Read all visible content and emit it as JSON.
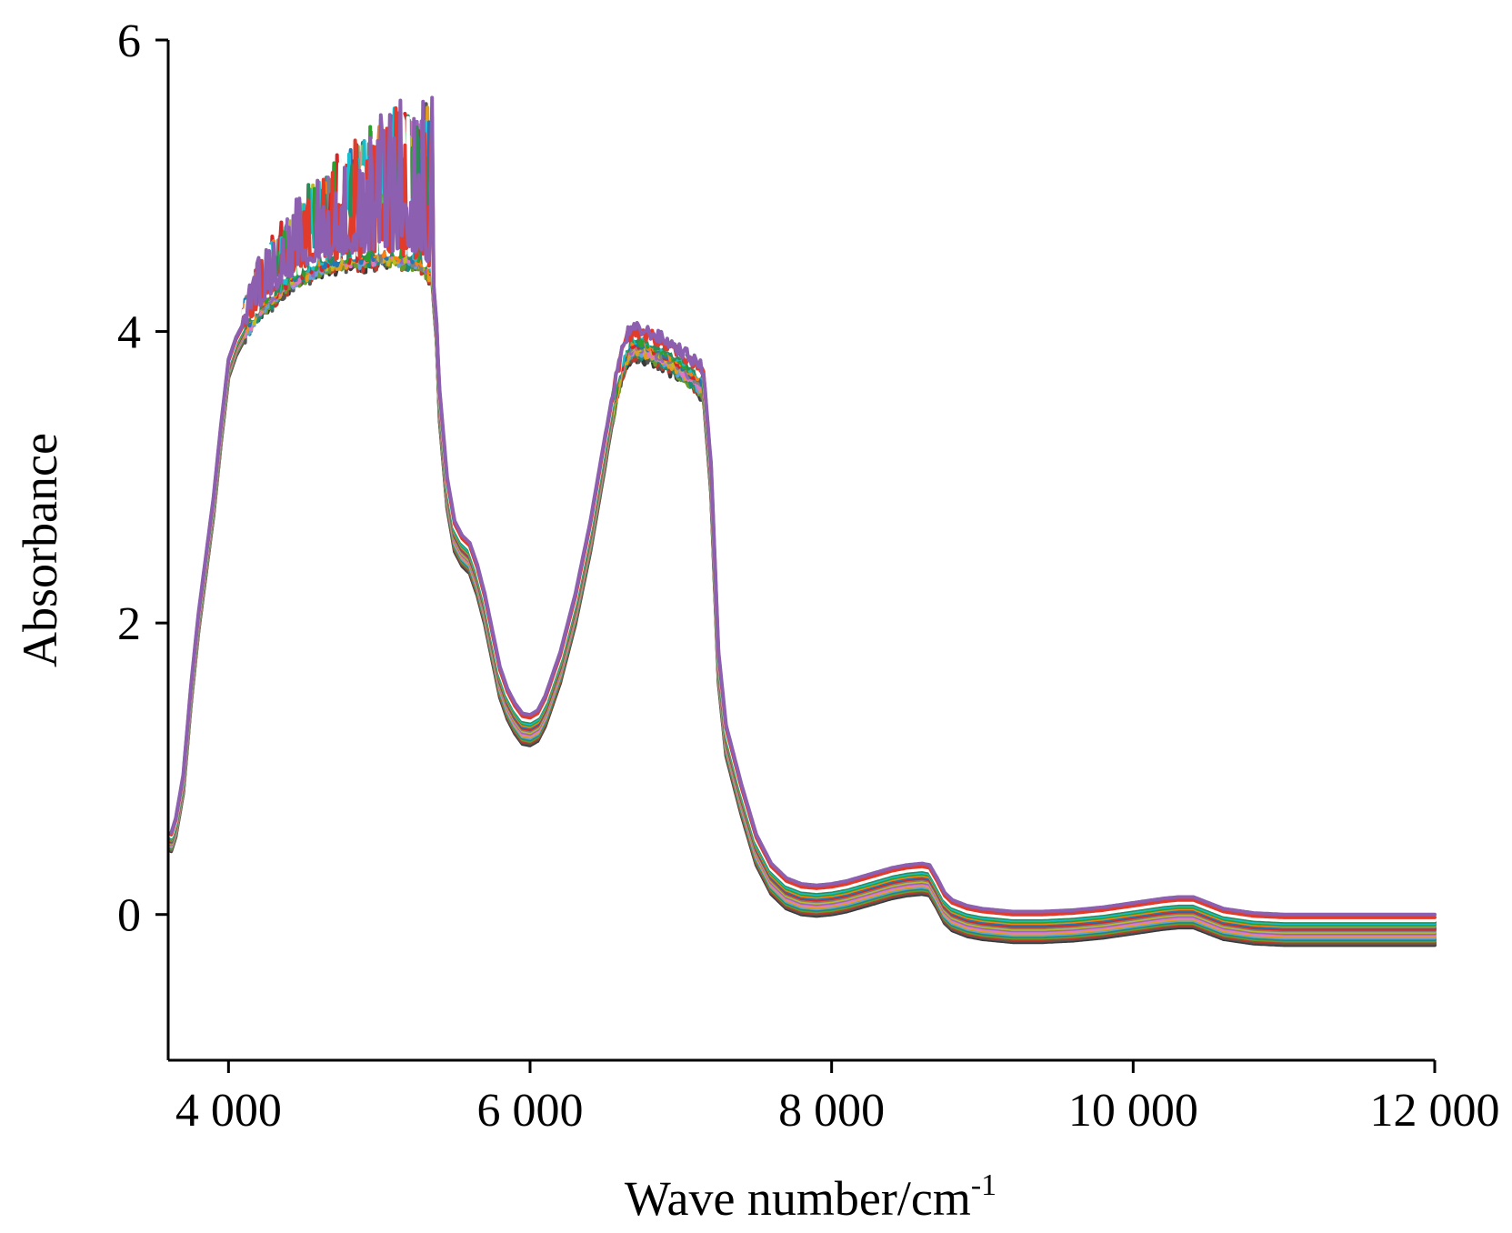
{
  "chart_data": {
    "type": "line",
    "title": "",
    "xlabel": "Wave number/cm",
    "xlabel_superscript": "-1",
    "ylabel": "Absorbance",
    "xlim": [
      3600,
      12000
    ],
    "ylim": [
      -1,
      6
    ],
    "xticks": [
      4000,
      6000,
      8000,
      10000,
      12000
    ],
    "xtick_labels": [
      "4 000",
      "6 000",
      "8 000",
      "10 000",
      "12 000"
    ],
    "yticks": [
      0,
      2,
      4,
      6
    ],
    "ytick_labels": [
      "0",
      "2",
      "4",
      "6"
    ],
    "grid": false,
    "legend": "none",
    "base_curve": {
      "x": [
        3620,
        3650,
        3700,
        3750,
        3800,
        3850,
        3900,
        3950,
        4000,
        4050,
        4100,
        4200,
        4300,
        4400,
        4500,
        4600,
        4700,
        4800,
        4900,
        5000,
        5100,
        5200,
        5300,
        5350,
        5380,
        5400,
        5450,
        5500,
        5550,
        5600,
        5650,
        5700,
        5750,
        5800,
        5850,
        5900,
        5950,
        6000,
        6050,
        6100,
        6200,
        6300,
        6400,
        6500,
        6550,
        6600,
        6650,
        6700,
        6800,
        6900,
        7000,
        7100,
        7150,
        7200,
        7250,
        7300,
        7400,
        7500,
        7600,
        7700,
        7800,
        7900,
        8000,
        8100,
        8200,
        8300,
        8400,
        8500,
        8600,
        8650,
        8700,
        8750,
        8800,
        8900,
        9000,
        9200,
        9400,
        9600,
        9800,
        10000,
        10200,
        10300,
        10400,
        10500,
        10600,
        10800,
        11000,
        11500,
        12000
      ],
      "y": [
        0.5,
        0.6,
        0.9,
        1.5,
        2.0,
        2.4,
        2.8,
        3.3,
        3.75,
        3.9,
        4.0,
        4.15,
        4.25,
        4.35,
        4.4,
        4.45,
        4.48,
        4.5,
        4.5,
        4.52,
        4.52,
        4.5,
        4.45,
        4.4,
        4.0,
        3.5,
        2.9,
        2.6,
        2.5,
        2.45,
        2.3,
        2.1,
        1.85,
        1.6,
        1.45,
        1.35,
        1.28,
        1.27,
        1.3,
        1.4,
        1.7,
        2.1,
        2.6,
        3.2,
        3.5,
        3.75,
        3.9,
        3.93,
        3.9,
        3.85,
        3.78,
        3.7,
        3.65,
        3.0,
        1.7,
        1.2,
        0.8,
        0.45,
        0.25,
        0.15,
        0.11,
        0.1,
        0.11,
        0.13,
        0.16,
        0.19,
        0.22,
        0.24,
        0.25,
        0.24,
        0.15,
        0.05,
        0.0,
        -0.04,
        -0.06,
        -0.08,
        -0.08,
        -0.07,
        -0.05,
        -0.02,
        0.01,
        0.02,
        0.02,
        -0.02,
        -0.06,
        -0.09,
        -0.1,
        -0.1,
        -0.1
      ]
    },
    "series_offsets": [
      0.1,
      0.08,
      0.06,
      0.05,
      0.04,
      0.03,
      0.02,
      0.01,
      0.0,
      -0.01,
      -0.02,
      -0.03,
      -0.04,
      -0.05,
      -0.06,
      -0.07,
      -0.08,
      -0.09,
      -0.1,
      -0.11
    ],
    "series_colors": [
      "#8c5fb0",
      "#e13b2b",
      "#ffffff",
      "#2e8b57",
      "#17becf",
      "#2ca02c",
      "#ff7f0e",
      "#1f77b4",
      "#d62728",
      "#7f7f7f",
      "#bcbd22",
      "#9467bd",
      "#e377c2",
      "#e39f1c",
      "#5fa3d9",
      "#1b8c77",
      "#6a9a2a",
      "#c0392b",
      "#555555",
      "#3a3a3a"
    ],
    "noise_region": {
      "x_from": 4100,
      "x_to": 5350,
      "max_amplitude": 1.2
    },
    "noise_region_2": {
      "x_from": 6550,
      "x_to": 7150,
      "max_amplitude": 0.15
    }
  }
}
